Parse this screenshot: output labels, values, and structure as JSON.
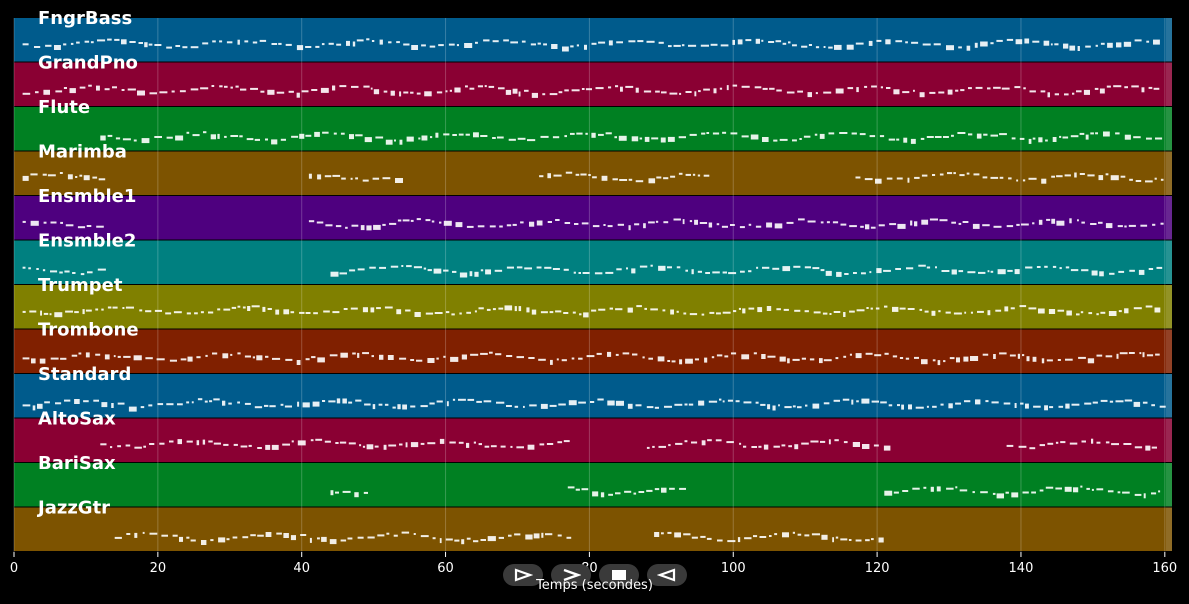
{
  "chart_data": {
    "type": "piano-roll",
    "xlabel": "Temps (secondes)",
    "xlim": [
      0,
      161
    ],
    "x_ticks": [
      0,
      20,
      40,
      60,
      80,
      100,
      120,
      140,
      160
    ],
    "tracks": [
      {
        "name": "FngrBass",
        "color": "#005b8c",
        "segments": [
          [
            1.2,
            159.5
          ]
        ]
      },
      {
        "name": "GrandPno",
        "color": "#8a0033",
        "segments": [
          [
            1.2,
            159.5
          ]
        ]
      },
      {
        "name": "Flute",
        "color": "#008022",
        "segments": [
          [
            12,
            159.5
          ]
        ]
      },
      {
        "name": "Marimba",
        "color": "#7d5300",
        "segments": [
          [
            1.2,
            12
          ],
          [
            41,
            53
          ],
          [
            73,
            96
          ],
          [
            117,
            159.5
          ]
        ]
      },
      {
        "name": "Ensmble1",
        "color": "#4e007f",
        "segments": [
          [
            1.2,
            12
          ],
          [
            41,
            159.5
          ]
        ]
      },
      {
        "name": "Ensmble2",
        "color": "#008080",
        "segments": [
          [
            1.2,
            12
          ],
          [
            44,
            159.5
          ]
        ]
      },
      {
        "name": "Trumpet",
        "color": "#808000",
        "segments": [
          [
            1.2,
            159.5
          ]
        ]
      },
      {
        "name": "Trombone",
        "color": "#802000",
        "segments": [
          [
            1.2,
            159.5
          ]
        ]
      },
      {
        "name": "Standard",
        "color": "#005b8c",
        "segments": [
          [
            1.2,
            159.5
          ]
        ]
      },
      {
        "name": "AltoSax",
        "color": "#8a0033",
        "segments": [
          [
            12,
            77
          ],
          [
            88,
            121
          ],
          [
            138,
            159.5
          ]
        ]
      },
      {
        "name": "BariSax",
        "color": "#008022",
        "segments": [
          [
            44,
            49
          ],
          [
            77,
            93
          ],
          [
            121,
            159.5
          ]
        ]
      },
      {
        "name": "JazzGtr",
        "color": "#7d5300",
        "segments": [
          [
            14,
            77
          ],
          [
            89,
            121
          ]
        ]
      }
    ]
  },
  "controls": [
    {
      "name": "play-button",
      "icon": "play-icon"
    },
    {
      "name": "next-button",
      "icon": "next-icon"
    },
    {
      "name": "stop-button",
      "icon": "stop-icon"
    },
    {
      "name": "back-button",
      "icon": "back-icon"
    }
  ]
}
